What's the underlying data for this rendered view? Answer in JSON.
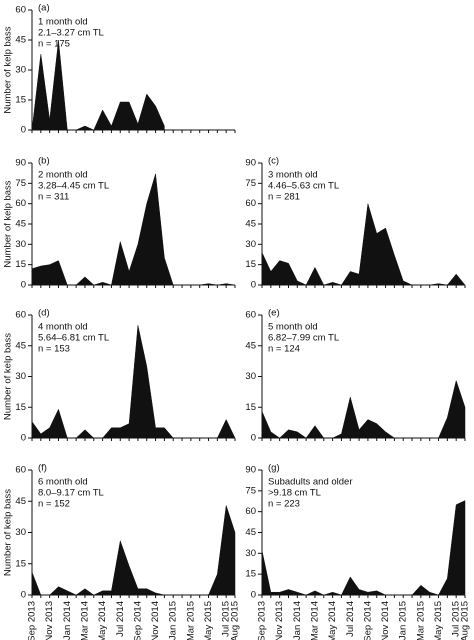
{
  "chart_data": [
    {
      "type": "area",
      "title": "(a)",
      "annotation": [
        "1 month old",
        "2.1–3.27 cm TL",
        "n = 175"
      ],
      "ylabel": "Number of kelp bass",
      "values": [
        0,
        38,
        5,
        45,
        0,
        0,
        2,
        0,
        10,
        2,
        14,
        14,
        3,
        18,
        12,
        2,
        null,
        null,
        null,
        null,
        null,
        null,
        null,
        null
      ],
      "color": "#111111",
      "ylim": [
        0,
        60
      ],
      "yticks": [
        0,
        15,
        30,
        45,
        60
      ]
    },
    {
      "type": "area",
      "title": "(b)",
      "annotation": [
        "2 month old",
        "3.28–4.45 cm TL",
        "n = 311"
      ],
      "ylabel": "Number of kelp bass",
      "values": [
        12,
        14,
        15,
        18,
        0,
        0,
        6,
        0,
        2,
        0,
        32,
        10,
        30,
        60,
        82,
        20,
        0,
        0,
        0,
        0,
        1,
        0,
        1,
        0
      ],
      "color": "#111111",
      "ylim": [
        0,
        90
      ],
      "yticks": [
        0,
        15,
        30,
        45,
        60,
        75,
        90
      ]
    },
    {
      "type": "area",
      "title": "(c)",
      "annotation": [
        "3 month old",
        "4.46–5.63 cm TL",
        "n = 281"
      ],
      "values": [
        24,
        10,
        18,
        16,
        3,
        0,
        13,
        0,
        2,
        0,
        10,
        8,
        60,
        38,
        42,
        22,
        3,
        0,
        0,
        0,
        1,
        0,
        8,
        0
      ],
      "color": "#111111",
      "ylim": [
        0,
        90
      ],
      "yticks": [
        0,
        15,
        30,
        45,
        60,
        75,
        90
      ]
    },
    {
      "type": "area",
      "title": "(d)",
      "annotation": [
        "4 month old",
        "5.64–6.81 cm TL",
        "n = 153"
      ],
      "ylabel": "Number of kelp bass",
      "values": [
        8,
        2,
        5,
        14,
        0,
        0,
        4,
        0,
        0,
        5,
        5,
        7,
        55,
        35,
        5,
        5,
        0,
        0,
        0,
        0,
        0,
        0,
        9,
        0
      ],
      "color": "#111111",
      "ylim": [
        0,
        60
      ],
      "yticks": [
        0,
        15,
        30,
        45,
        60
      ]
    },
    {
      "type": "area",
      "title": "(e)",
      "annotation": [
        "5 month old",
        "6.82–7.99 cm TL",
        "n = 124"
      ],
      "values": [
        13,
        3,
        0,
        4,
        3,
        0,
        6,
        0,
        0,
        2,
        20,
        4,
        9,
        7,
        3,
        0,
        0,
        0,
        0,
        0,
        0,
        10,
        28,
        15
      ],
      "color": "#111111",
      "ylim": [
        0,
        60
      ],
      "yticks": [
        0,
        15,
        30,
        45,
        60
      ]
    },
    {
      "type": "area",
      "title": "(f)",
      "annotation": [
        "6 month old",
        "8.0–9.17 cm TL",
        "n = 152"
      ],
      "ylabel": "Number of kelp bass",
      "categories": [
        "Sep 2013",
        null,
        "Nov 2013",
        null,
        "Jan 2014",
        null,
        "Mar 2014",
        null,
        "May 2014",
        null,
        "Jul 2014",
        null,
        "Sep 2014",
        null,
        "Nov 2014",
        null,
        "Jan 2015",
        null,
        "Mar 2015",
        null,
        "May 2015",
        null,
        "Jul 2015",
        "Aug 2015"
      ],
      "values": [
        11,
        0,
        0,
        4,
        2,
        0,
        3,
        0,
        2,
        2,
        26,
        14,
        3,
        3,
        1,
        0,
        0,
        0,
        0,
        0,
        0,
        10,
        43,
        30
      ],
      "color": "#111111",
      "ylim": [
        0,
        60
      ],
      "yticks": [
        0,
        15,
        30,
        45,
        60
      ]
    },
    {
      "type": "area",
      "title": "(g)",
      "annotation": [
        "Subadults and older",
        ">9.18 cm TL",
        "n = 223"
      ],
      "categories": [
        "Sep 2013",
        null,
        "Nov 2013",
        null,
        "Jan 2014",
        null,
        "Mar 2014",
        null,
        "May 2014",
        null,
        "Jul 2014",
        null,
        "Sep 2014",
        null,
        "Nov 2014",
        null,
        "Jan 2015",
        null,
        "Mar 2015",
        null,
        "May 2015",
        null,
        "Jul 2015",
        "Aug 2015"
      ],
      "values": [
        32,
        2,
        2,
        4,
        2,
        0,
        3,
        0,
        2,
        0,
        13,
        4,
        2,
        3,
        0,
        0,
        0,
        0,
        7,
        2,
        0,
        12,
        65,
        68
      ],
      "color": "#111111",
      "ylim": [
        0,
        90
      ],
      "yticks": [
        0,
        15,
        30,
        45,
        60,
        75,
        90
      ]
    }
  ]
}
